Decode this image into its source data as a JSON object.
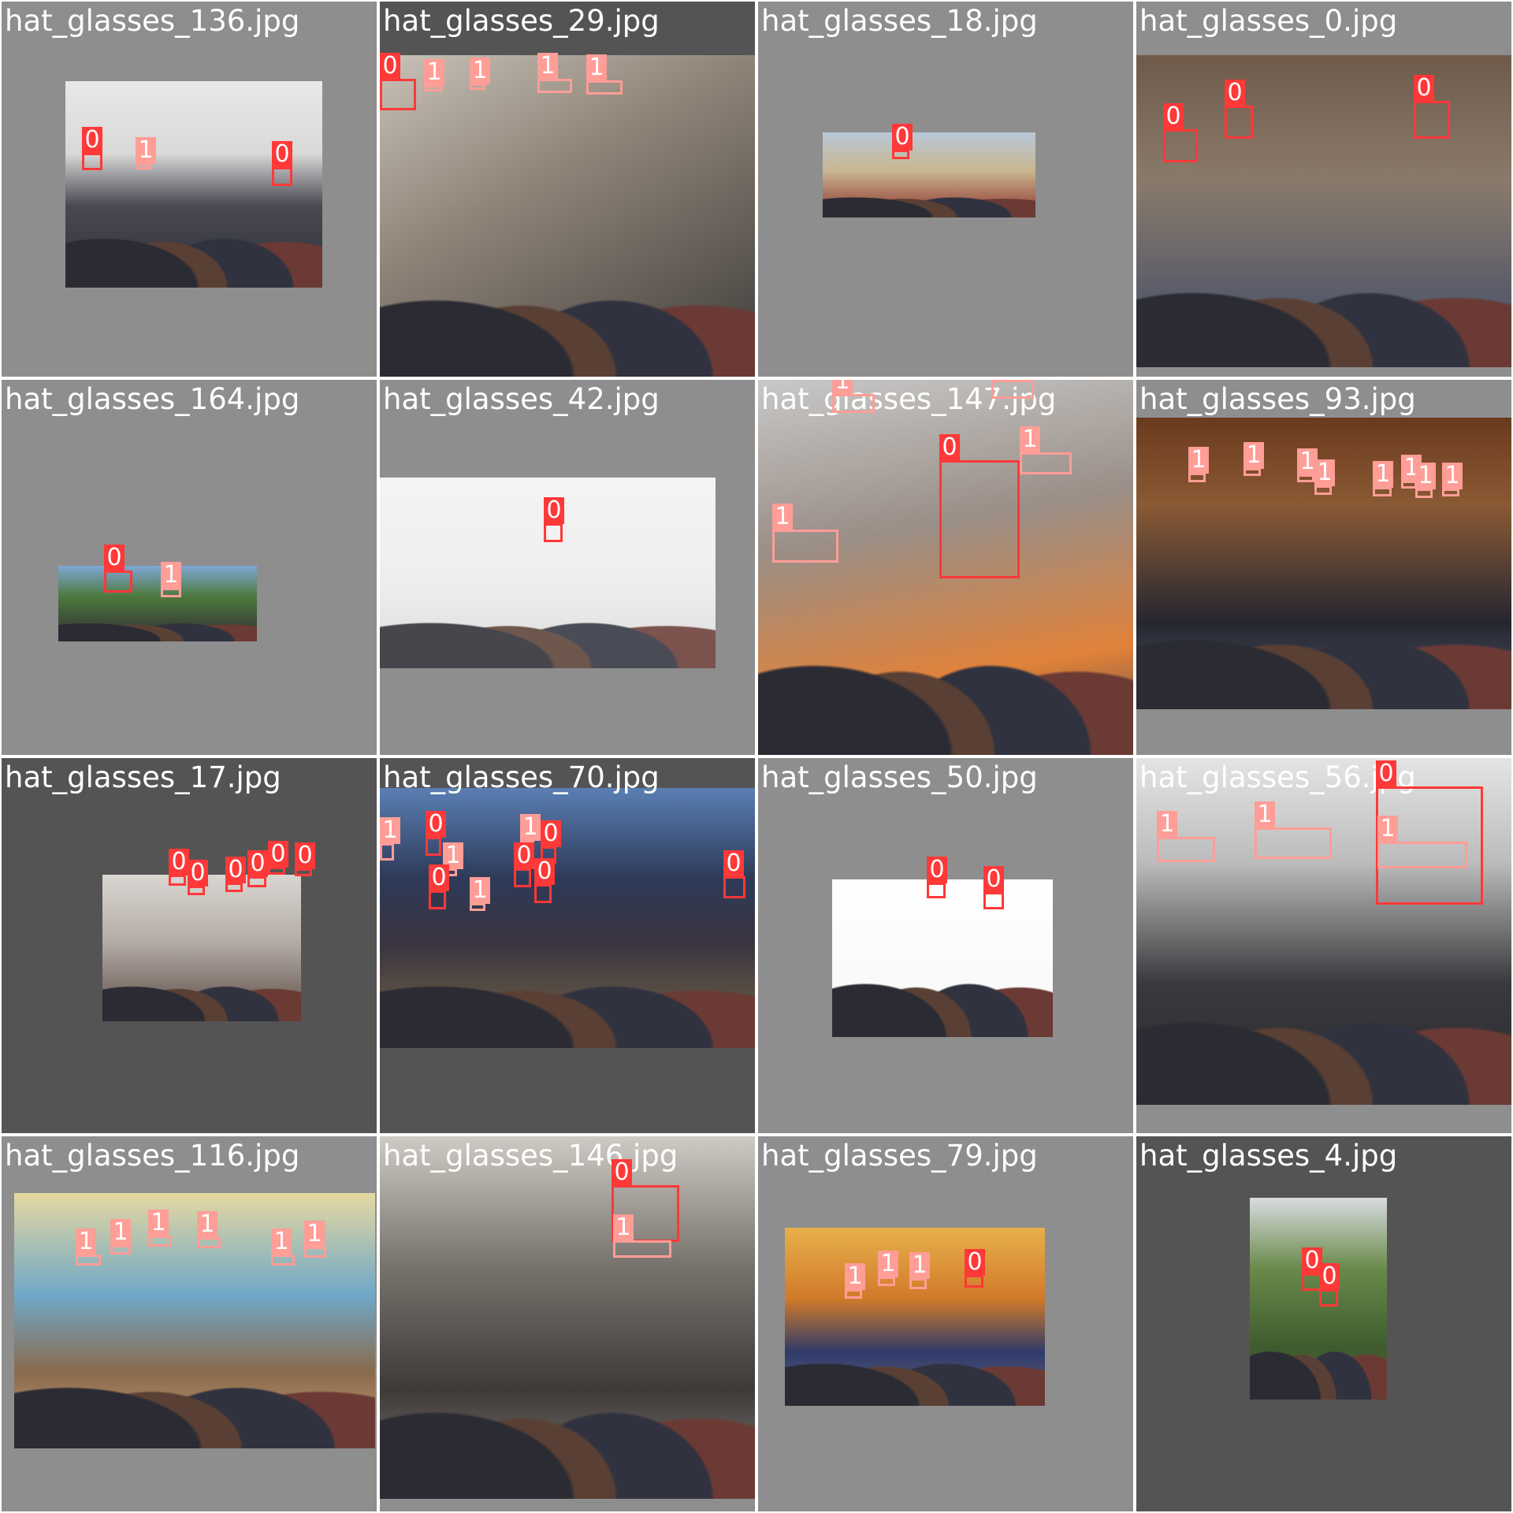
{
  "mosaic": {
    "tiles": [
      {
        "filename": "hat_glasses_136.jpg",
        "labels": [
          "0",
          "1",
          "0"
        ]
      },
      {
        "filename": "hat_glasses_29.jpg",
        "labels": [
          "0",
          "1",
          "1",
          "1",
          "1"
        ]
      },
      {
        "filename": "hat_glasses_18.jpg",
        "labels": [
          "0"
        ]
      },
      {
        "filename": "hat_glasses_0.jpg",
        "labels": [
          "0",
          "0",
          "0"
        ]
      },
      {
        "filename": "hat_glasses_164.jpg",
        "labels": [
          "0",
          "1"
        ]
      },
      {
        "filename": "hat_glasses_42.jpg",
        "labels": [
          "0"
        ]
      },
      {
        "filename": "hat_glasses_147.jpg",
        "labels": [
          "1",
          "1",
          "0",
          "1",
          "1"
        ]
      },
      {
        "filename": "hat_glasses_93.jpg",
        "labels": [
          "1",
          "1",
          "1",
          "1",
          "1",
          "1",
          "1",
          "1"
        ]
      },
      {
        "filename": "hat_glasses_17.jpg",
        "labels": [
          "0",
          "0",
          "0",
          "0",
          "0",
          "0"
        ]
      },
      {
        "filename": "hat_glasses_70.jpg",
        "labels": [
          "1",
          "0",
          "1",
          "0",
          "1",
          "0",
          "0",
          "1",
          "0",
          "0"
        ]
      },
      {
        "filename": "hat_glasses_50.jpg",
        "labels": [
          "0",
          "0"
        ]
      },
      {
        "filename": "hat_glasses_56.jpg",
        "labels": [
          "1",
          "1",
          "0",
          "1"
        ]
      },
      {
        "filename": "hat_glasses_116.jpg",
        "labels": [
          "1",
          "1",
          "1",
          "1",
          "1",
          "1"
        ]
      },
      {
        "filename": "hat_glasses_146.jpg",
        "labels": [
          "0",
          "1"
        ]
      },
      {
        "filename": "hat_glasses_79.jpg",
        "labels": [
          "1",
          "1",
          "1",
          "0"
        ]
      },
      {
        "filename": "hat_glasses_4.jpg",
        "labels": [
          "0",
          "0"
        ]
      }
    ]
  }
}
